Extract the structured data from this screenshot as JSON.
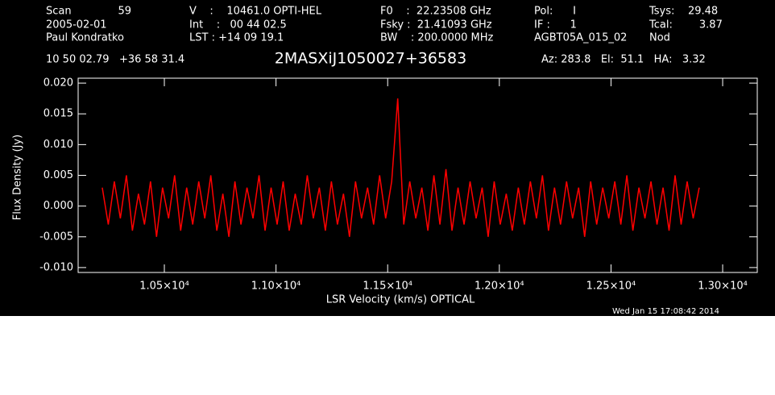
{
  "chart_data": {
    "type": "line",
    "title": "2MASXiJ1050027+36583",
    "x_label": "LSR Velocity (km/s) OPTICAL",
    "y_label": "Flux Density (Jy)",
    "header": [
      "Scan",
      "59",
      "2005-02-01",
      "Paul Kondratko",
      "V    :    10461.0 OPTI-HEL",
      "Int    :   00 44 02.5",
      "LST : +14 09 19.1",
      "F0    :  22.23508 GHz",
      "Fsky :  21.41093 GHz",
      "BW    : 200.0000 MHz",
      "Pol:      I",
      "IF :      1",
      "AGBT05A_015_02",
      "Tsys:    29.48",
      "Tcal:        3.87",
      "Nod",
      "10 50 02.79   +36 58 31.4",
      "Az: 283.8   El:  51.1   HA:   3.32"
    ],
    "date": "Wed Jan 15 17:08:42 2014",
    "color": "#ff0000",
    "xlim": [
      10114,
      13155
    ],
    "ylim": [
      -0.0108,
      0.0208
    ],
    "xticks": [
      {
        "value": 10500,
        "label": "1.05×10⁴"
      },
      {
        "value": 11000,
        "label": "1.10×10⁴"
      },
      {
        "value": 11500,
        "label": "1.15×10⁴"
      },
      {
        "value": 12000,
        "label": "1.20×10⁴"
      },
      {
        "value": 12500,
        "label": "1.25×10⁴"
      },
      {
        "value": 13000,
        "label": "1.30×10⁴"
      }
    ],
    "yticks": [
      {
        "value": -0.01,
        "label": "-0.010"
      },
      {
        "value": -0.005,
        "label": "-0.005"
      },
      {
        "value": 0,
        "label": "0.000"
      },
      {
        "value": 0.005,
        "label": "0.005"
      },
      {
        "value": 0.01,
        "label": "0.010"
      },
      {
        "value": 0.015,
        "label": "0.015"
      },
      {
        "value": 0.02,
        "label": "0.020"
      }
    ],
    "x": [
      10222,
      10249,
      10276,
      10303,
      10330,
      10357,
      10384,
      10411,
      10438,
      10465,
      10492,
      10519,
      10546,
      10573,
      10600,
      10627,
      10654,
      10681,
      10708,
      10735,
      10762,
      10789,
      10816,
      10843,
      10870,
      10897,
      10924,
      10951,
      10978,
      11005,
      11032,
      11059,
      11086,
      11113,
      11140,
      11167,
      11194,
      11221,
      11248,
      11275,
      11302,
      11329,
      11356,
      11383,
      11410,
      11437,
      11464,
      11491,
      11518,
      11545,
      11572,
      11599,
      11626,
      11653,
      11680,
      11707,
      11734,
      11761,
      11788,
      11815,
      11842,
      11869,
      11896,
      11923,
      11950,
      11977,
      12004,
      12031,
      12058,
      12085,
      12112,
      12139,
      12166,
      12193,
      12220,
      12247,
      12274,
      12301,
      12328,
      12355,
      12382,
      12409,
      12436,
      12463,
      12490,
      12517,
      12544,
      12571,
      12598,
      12625,
      12652,
      12679,
      12706,
      12733,
      12760,
      12787,
      12814,
      12841,
      12868,
      12895
    ],
    "values": [
      0.003,
      -0.003,
      0.004,
      -0.002,
      0.005,
      -0.004,
      0.002,
      -0.003,
      0.004,
      -0.005,
      0.003,
      -0.002,
      0.005,
      -0.004,
      0.003,
      -0.003,
      0.004,
      -0.002,
      0.005,
      -0.004,
      0.002,
      -0.005,
      0.004,
      -0.003,
      0.003,
      -0.002,
      0.005,
      -0.004,
      0.003,
      -0.003,
      0.004,
      -0.004,
      0.002,
      -0.003,
      0.005,
      -0.002,
      0.003,
      -0.004,
      0.004,
      -0.003,
      0.002,
      -0.005,
      0.004,
      -0.002,
      0.003,
      -0.003,
      0.005,
      -0.002,
      0.004,
      0.0175,
      -0.003,
      0.004,
      -0.002,
      0.003,
      -0.004,
      0.005,
      -0.003,
      0.006,
      -0.004,
      0.003,
      -0.003,
      0.004,
      -0.002,
      0.003,
      -0.005,
      0.004,
      -0.003,
      0.002,
      -0.004,
      0.003,
      -0.003,
      0.004,
      -0.002,
      0.005,
      -0.004,
      0.003,
      -0.003,
      0.004,
      -0.002,
      0.003,
      -0.005,
      0.004,
      -0.003,
      0.003,
      -0.002,
      0.004,
      -0.003,
      0.005,
      -0.004,
      0.003,
      -0.002,
      0.004,
      -0.003,
      0.003,
      -0.004,
      0.005,
      -0.003,
      0.004,
      -0.002,
      0.003
    ]
  }
}
